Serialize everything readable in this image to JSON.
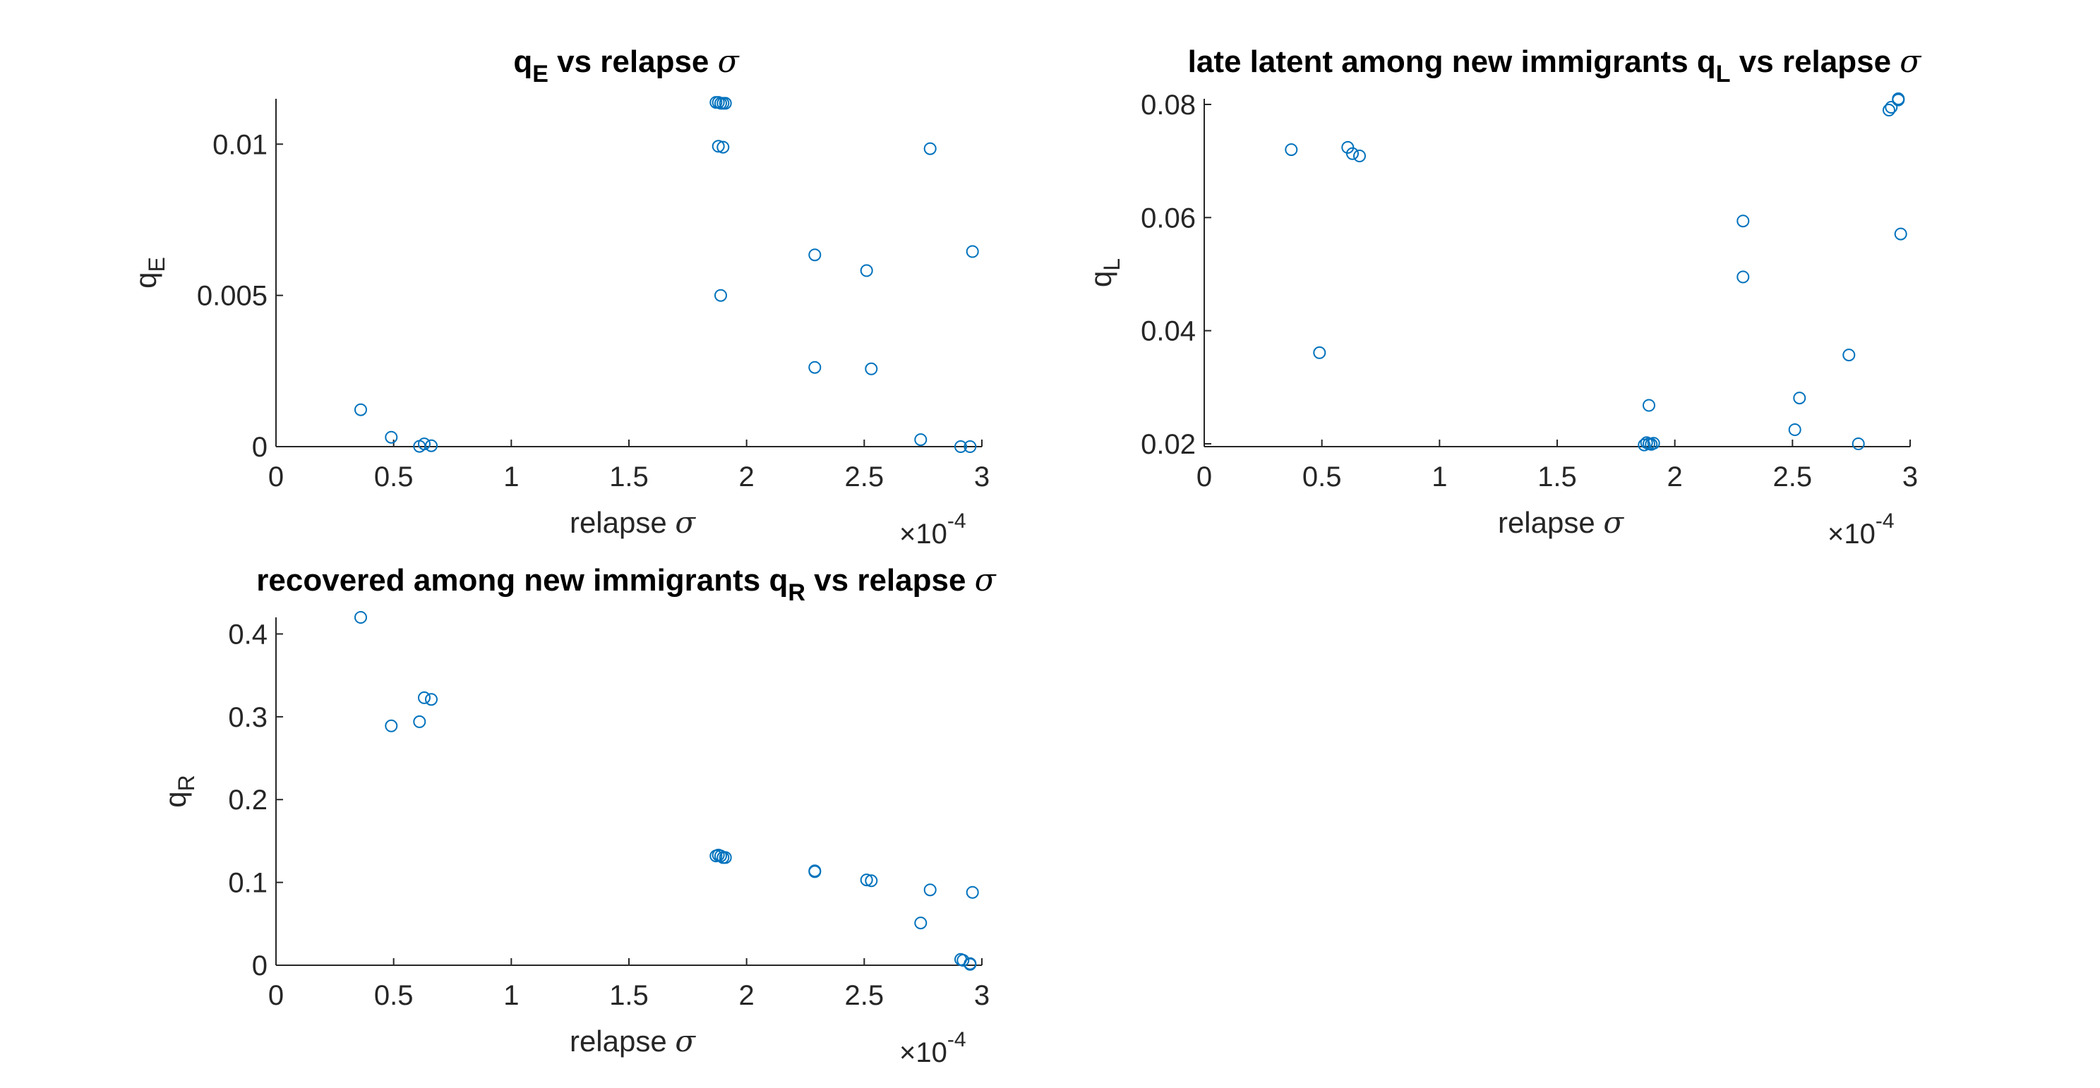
{
  "colors": {
    "marker": "#0072BD",
    "axis": "#262626",
    "background": "#ffffff"
  },
  "chart_data": [
    {
      "type": "scatter",
      "title": "q_E vs relapse σ",
      "title_parts": {
        "main": "q",
        "sub": "E",
        "rest": " vs relapse ",
        "symbol": "σ"
      },
      "xlabel": "relapse σ",
      "xlabel_parts": {
        "text": "relapse ",
        "symbol": "σ"
      },
      "ylabel": "q_E",
      "ylabel_parts": {
        "main": "q",
        "sub": "E"
      },
      "x_exponent_label": "×10",
      "x_exponent": "-4",
      "xlim": [
        0,
        3
      ],
      "ylim": [
        0,
        0.0115
      ],
      "xticks": [
        0,
        0.5,
        1,
        1.5,
        2,
        2.5,
        3
      ],
      "xtick_labels": [
        "0",
        "0.5",
        "1",
        "1.5",
        "2",
        "2.5",
        "3"
      ],
      "yticks": [
        0,
        0.005,
        0.01
      ],
      "ytick_labels": [
        "0",
        "0.005",
        "0.01"
      ],
      "grid": false,
      "marker": "open-circle",
      "x": [
        0.36,
        0.49,
        0.61,
        0.63,
        0.66,
        1.87,
        1.88,
        1.89,
        1.9,
        1.91,
        1.88,
        1.9,
        1.89,
        2.29,
        2.29,
        2.51,
        2.53,
        2.74,
        2.78,
        2.91,
        2.95,
        2.96
      ],
      "y": [
        0.00122,
        0.00031,
        1e-05,
        9e-05,
        3e-05,
        0.01138,
        0.01138,
        0.01135,
        0.01135,
        0.01135,
        0.00993,
        0.0099,
        0.005,
        0.00634,
        0.00262,
        0.00582,
        0.00257,
        0.00023,
        0.00985,
        0.0,
        0.0,
        0.00645
      ]
    },
    {
      "type": "scatter",
      "title": "late latent among new immigrants q_L vs relapse σ",
      "title_parts": {
        "main": "late latent among new immigrants q",
        "sub": "L",
        "rest": " vs relapse ",
        "symbol": "σ"
      },
      "xlabel": "relapse σ",
      "xlabel_parts": {
        "text": "relapse ",
        "symbol": "σ"
      },
      "ylabel": "q_L",
      "ylabel_parts": {
        "main": "q",
        "sub": "L"
      },
      "x_exponent_label": "×10",
      "x_exponent": "-4",
      "xlim": [
        0,
        3
      ],
      "ylim": [
        0.0195,
        0.081
      ],
      "xticks": [
        0,
        0.5,
        1,
        1.5,
        2,
        2.5,
        3
      ],
      "xtick_labels": [
        "0",
        "0.5",
        "1",
        "1.5",
        "2",
        "2.5",
        "3"
      ],
      "yticks": [
        0.02,
        0.04,
        0.06,
        0.08
      ],
      "ytick_labels": [
        "0.02",
        "0.04",
        "0.06",
        "0.08"
      ],
      "grid": false,
      "marker": "open-circle",
      "x": [
        0.37,
        0.49,
        0.61,
        0.63,
        0.66,
        1.87,
        1.88,
        1.89,
        1.9,
        1.91,
        1.89,
        2.29,
        2.29,
        2.51,
        2.53,
        2.74,
        2.78,
        2.91,
        2.92,
        2.95,
        2.95,
        2.96
      ],
      "y": [
        0.072,
        0.0361,
        0.0724,
        0.0713,
        0.0709,
        0.0198,
        0.0202,
        0.02,
        0.0199,
        0.0201,
        0.0268,
        0.0594,
        0.0495,
        0.0225,
        0.0281,
        0.0357,
        0.02,
        0.079,
        0.0795,
        0.0808,
        0.081,
        0.0571
      ]
    },
    {
      "type": "scatter",
      "title": "recovered among new immigrants q_R vs relapse σ",
      "title_parts": {
        "main": "recovered among new immigrants q",
        "sub": "R",
        "rest": " vs relapse ",
        "symbol": "σ"
      },
      "xlabel": "relapse σ",
      "xlabel_parts": {
        "text": "relapse ",
        "symbol": "σ"
      },
      "ylabel": "q_R",
      "ylabel_parts": {
        "main": "q",
        "sub": "R"
      },
      "x_exponent_label": "×10",
      "x_exponent": "-4",
      "xlim": [
        0,
        3
      ],
      "ylim": [
        0,
        0.42
      ],
      "xticks": [
        0,
        0.5,
        1,
        1.5,
        2,
        2.5,
        3
      ],
      "xtick_labels": [
        "0",
        "0.5",
        "1",
        "1.5",
        "2",
        "2.5",
        "3"
      ],
      "yticks": [
        0,
        0.1,
        0.2,
        0.3,
        0.4
      ],
      "ytick_labels": [
        "0",
        "0.1",
        "0.2",
        "0.3",
        "0.4"
      ],
      "grid": false,
      "marker": "open-circle",
      "x": [
        0.36,
        0.49,
        0.61,
        0.63,
        0.66,
        1.87,
        1.88,
        1.89,
        1.9,
        1.91,
        2.29,
        2.29,
        2.51,
        2.53,
        2.74,
        2.78,
        2.91,
        2.92,
        2.95,
        2.95,
        2.96
      ],
      "y": [
        0.42,
        0.289,
        0.294,
        0.323,
        0.321,
        0.132,
        0.133,
        0.132,
        0.13,
        0.13,
        0.113,
        0.114,
        0.103,
        0.102,
        0.051,
        0.091,
        0.007,
        0.006,
        0.001,
        0.002,
        0.088
      ]
    }
  ]
}
